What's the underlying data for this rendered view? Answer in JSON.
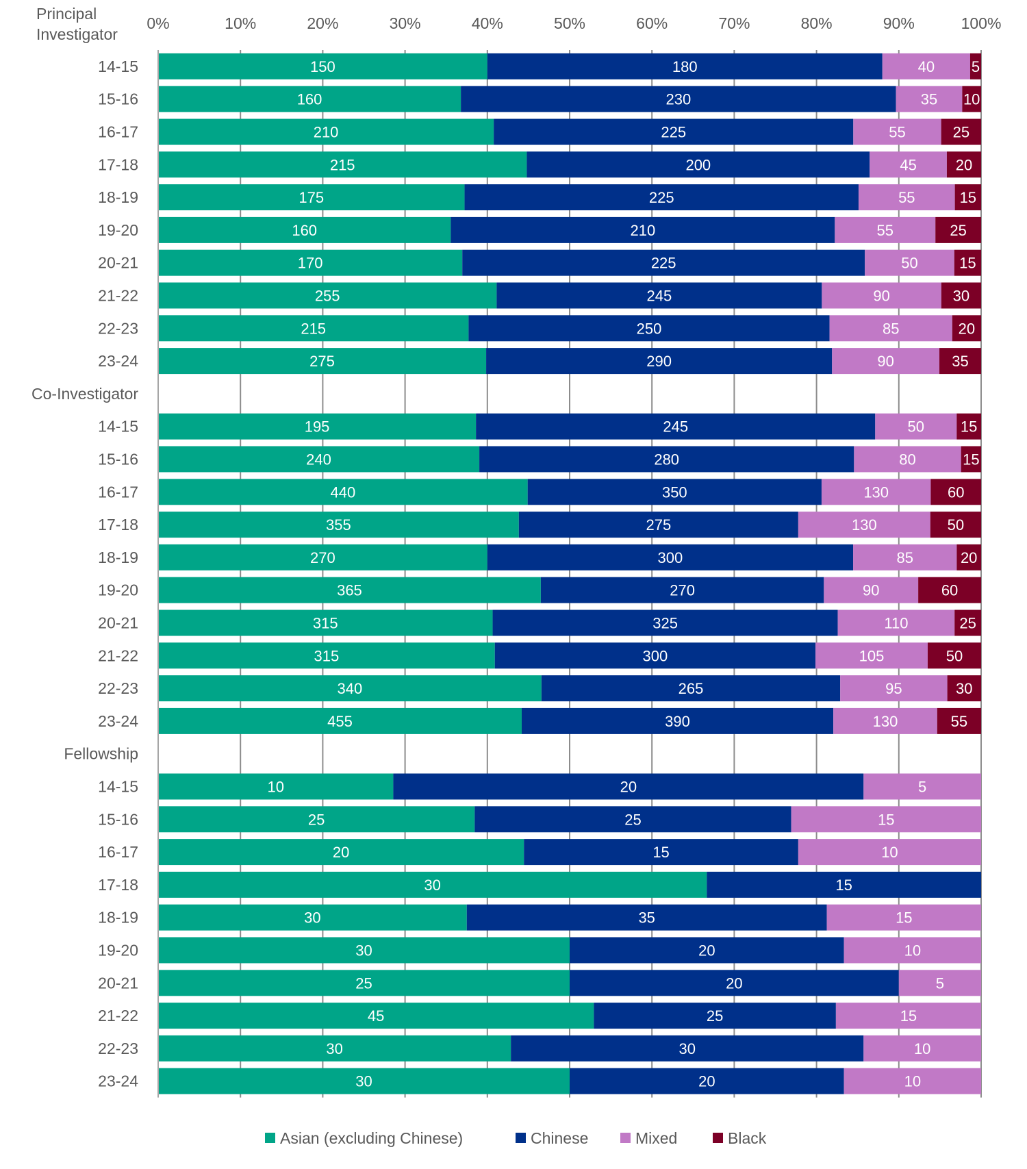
{
  "chart_data": {
    "type": "bar",
    "orientation": "horizontal",
    "stacking": "percent",
    "title": "",
    "xlabel": "",
    "ylabel": "",
    "xlim": [
      0,
      100
    ],
    "x_ticks": [
      "0%",
      "10%",
      "20%",
      "30%",
      "40%",
      "50%",
      "60%",
      "70%",
      "80%",
      "90%",
      "100%"
    ],
    "grid": "vertical",
    "legend_position": "bottom",
    "series": [
      {
        "name": "Asian (excluding Chinese)",
        "color": "#00A588"
      },
      {
        "name": "Chinese",
        "color": "#00308A"
      },
      {
        "name": "Mixed",
        "color": "#C179C6"
      },
      {
        "name": "Black",
        "color": "#7C0026"
      }
    ],
    "groups": [
      {
        "label": "Principal Investigator",
        "categories": [
          "14-15",
          "15-16",
          "16-17",
          "17-18",
          "18-19",
          "19-20",
          "20-21",
          "21-22",
          "22-23",
          "23-24"
        ],
        "values": {
          "Asian (excluding Chinese)": [
            150,
            160,
            210,
            215,
            175,
            160,
            170,
            255,
            215,
            275
          ],
          "Chinese": [
            180,
            230,
            225,
            200,
            225,
            210,
            225,
            245,
            250,
            290
          ],
          "Mixed": [
            40,
            35,
            55,
            45,
            55,
            55,
            50,
            90,
            85,
            90
          ],
          "Black": [
            5,
            10,
            25,
            20,
            15,
            25,
            15,
            30,
            20,
            35
          ]
        }
      },
      {
        "label": "Co-Investigator",
        "categories": [
          "14-15",
          "15-16",
          "16-17",
          "17-18",
          "18-19",
          "19-20",
          "20-21",
          "21-22",
          "22-23",
          "23-24"
        ],
        "values": {
          "Asian (excluding Chinese)": [
            195,
            240,
            440,
            355,
            270,
            365,
            315,
            315,
            340,
            455
          ],
          "Chinese": [
            245,
            280,
            350,
            275,
            300,
            270,
            325,
            300,
            265,
            390
          ],
          "Mixed": [
            50,
            80,
            130,
            130,
            85,
            90,
            110,
            105,
            95,
            130
          ],
          "Black": [
            15,
            15,
            60,
            50,
            20,
            60,
            25,
            50,
            30,
            55
          ]
        }
      },
      {
        "label": "Fellowship",
        "categories": [
          "14-15",
          "15-16",
          "16-17",
          "17-18",
          "18-19",
          "19-20",
          "20-21",
          "21-22",
          "22-23",
          "23-24"
        ],
        "values": {
          "Asian (excluding Chinese)": [
            10,
            25,
            20,
            30,
            30,
            30,
            25,
            45,
            30,
            30
          ],
          "Chinese": [
            20,
            25,
            15,
            15,
            35,
            20,
            20,
            25,
            30,
            20
          ],
          "Mixed": [
            5,
            15,
            10,
            0,
            15,
            10,
            5,
            15,
            10,
            10
          ],
          "Black": [
            0,
            0,
            0,
            0,
            0,
            0,
            0,
            0,
            0,
            0
          ]
        }
      }
    ]
  }
}
